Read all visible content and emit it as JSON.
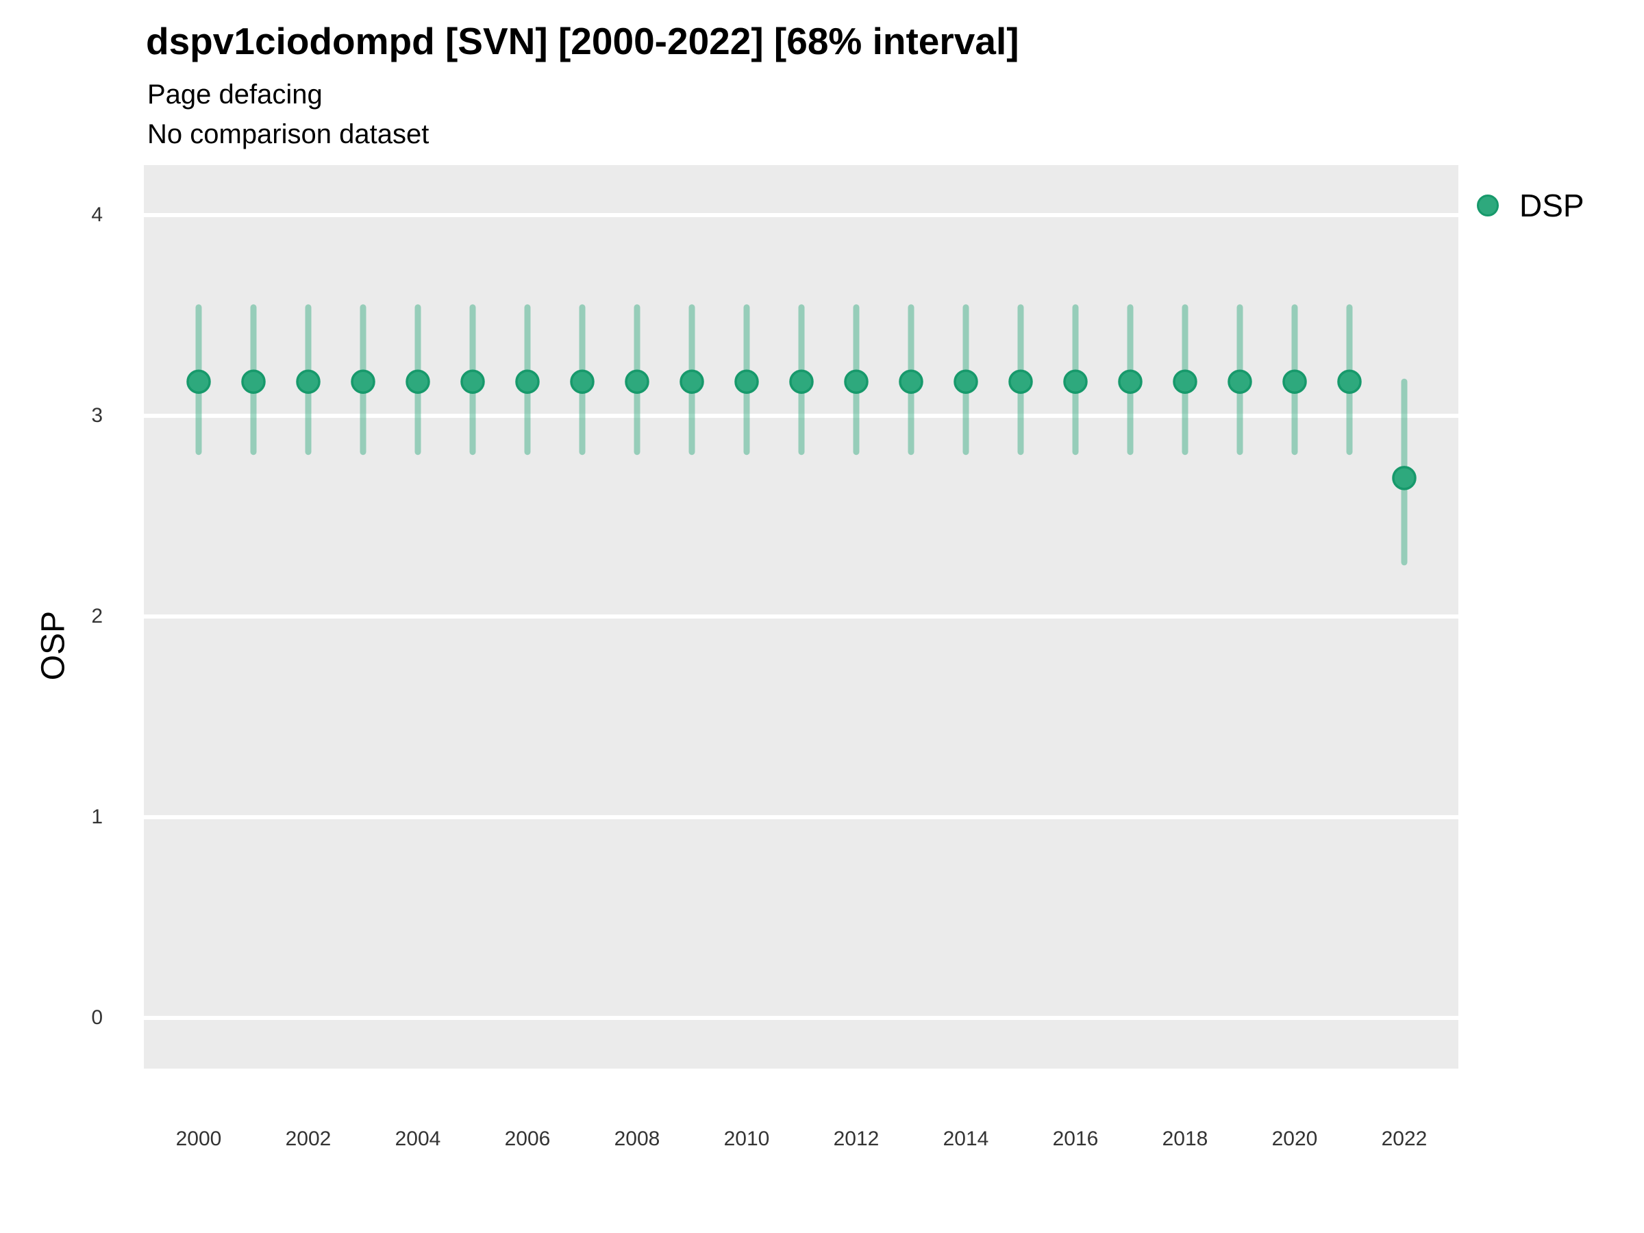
{
  "header": {
    "title": "dspv1ciodompd [SVN] [2000-2022] [68% interval]",
    "subtitle": "Page defacing",
    "note": "No comparison dataset"
  },
  "y_axis": {
    "title": "OSP"
  },
  "legend": {
    "label": "DSP"
  },
  "colors": {
    "point_fill": "#2EA97D",
    "point_stroke": "#17996B",
    "interval_line": "#2EA97D",
    "panel_background": "#EBEBEB",
    "gridline": "#FFFFFF"
  },
  "chart_data": {
    "type": "scatter",
    "title": "dspv1ciodompd [SVN] [2000-2022] [68% interval]",
    "subtitle": "Page defacing",
    "annotation": "No comparison dataset",
    "interval": "68%",
    "xlabel": "",
    "ylabel": "OSP",
    "legend_entries": [
      "DSP"
    ],
    "legend_position": "top-right",
    "grid": true,
    "ylim": [
      -0.25,
      4.25
    ],
    "yticks": [
      0,
      1,
      2,
      3,
      4
    ],
    "xticks": [
      2000,
      2002,
      2004,
      2006,
      2008,
      2010,
      2012,
      2014,
      2016,
      2018,
      2020,
      2022
    ],
    "series": [
      {
        "name": "DSP",
        "points": [
          {
            "x": 2000,
            "y": 3.17,
            "lo": 2.82,
            "hi": 3.54
          },
          {
            "x": 2001,
            "y": 3.17,
            "lo": 2.82,
            "hi": 3.54
          },
          {
            "x": 2002,
            "y": 3.17,
            "lo": 2.82,
            "hi": 3.54
          },
          {
            "x": 2003,
            "y": 3.17,
            "lo": 2.82,
            "hi": 3.54
          },
          {
            "x": 2004,
            "y": 3.17,
            "lo": 2.82,
            "hi": 3.54
          },
          {
            "x": 2005,
            "y": 3.17,
            "lo": 2.82,
            "hi": 3.54
          },
          {
            "x": 2006,
            "y": 3.17,
            "lo": 2.82,
            "hi": 3.54
          },
          {
            "x": 2007,
            "y": 3.17,
            "lo": 2.82,
            "hi": 3.54
          },
          {
            "x": 2008,
            "y": 3.17,
            "lo": 2.82,
            "hi": 3.54
          },
          {
            "x": 2009,
            "y": 3.17,
            "lo": 2.82,
            "hi": 3.54
          },
          {
            "x": 2010,
            "y": 3.17,
            "lo": 2.82,
            "hi": 3.54
          },
          {
            "x": 2011,
            "y": 3.17,
            "lo": 2.82,
            "hi": 3.54
          },
          {
            "x": 2012,
            "y": 3.17,
            "lo": 2.82,
            "hi": 3.54
          },
          {
            "x": 2013,
            "y": 3.17,
            "lo": 2.82,
            "hi": 3.54
          },
          {
            "x": 2014,
            "y": 3.17,
            "lo": 2.82,
            "hi": 3.54
          },
          {
            "x": 2015,
            "y": 3.17,
            "lo": 2.82,
            "hi": 3.54
          },
          {
            "x": 2016,
            "y": 3.17,
            "lo": 2.82,
            "hi": 3.54
          },
          {
            "x": 2017,
            "y": 3.17,
            "lo": 2.82,
            "hi": 3.54
          },
          {
            "x": 2018,
            "y": 3.17,
            "lo": 2.82,
            "hi": 3.54
          },
          {
            "x": 2019,
            "y": 3.17,
            "lo": 2.82,
            "hi": 3.54
          },
          {
            "x": 2020,
            "y": 3.17,
            "lo": 2.82,
            "hi": 3.54
          },
          {
            "x": 2021,
            "y": 3.17,
            "lo": 2.82,
            "hi": 3.54
          },
          {
            "x": 2022,
            "y": 2.69,
            "lo": 2.27,
            "hi": 3.17
          }
        ]
      }
    ]
  }
}
